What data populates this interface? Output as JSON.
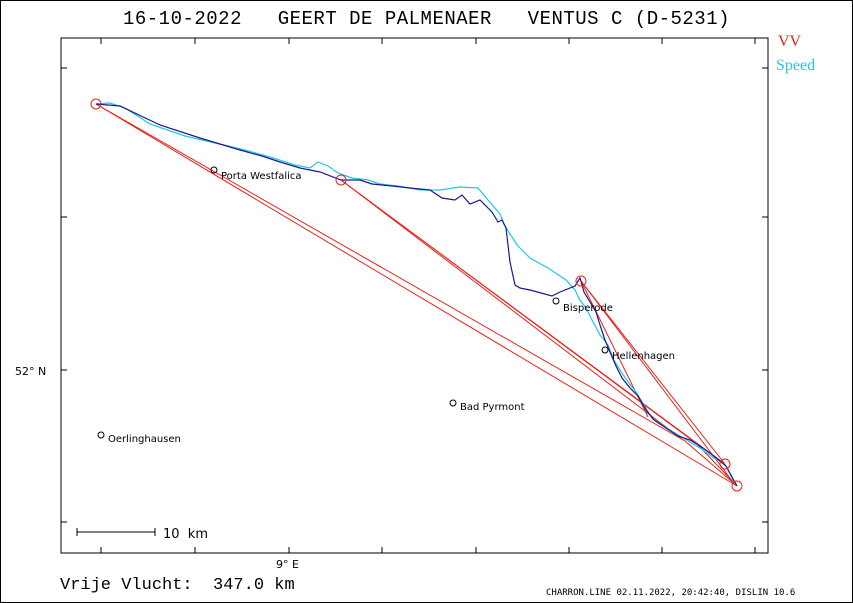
{
  "header": {
    "date": "16-10-2022",
    "pilot": "GEERT DE PALMENAER",
    "glider": "VENTUS C (D-5231)"
  },
  "legend": {
    "vv": {
      "label": "VV",
      "color": "#e8231a"
    },
    "speed": {
      "label": "Speed",
      "color": "#1ec8e6"
    }
  },
  "axes": {
    "lon_label": "9° E",
    "lat_label": "52° N"
  },
  "scalebar": {
    "label": "10  km"
  },
  "places": [
    {
      "name": "Porta Westfalica"
    },
    {
      "name": "Bisperode"
    },
    {
      "name": "Hellenhagen"
    },
    {
      "name": "Bad Pyrmont"
    },
    {
      "name": "Oerlinghausen"
    }
  ],
  "summary": {
    "label": "Vrije Vlucht:",
    "distance": "347.0 km"
  },
  "footer": {
    "text": "CHARRON.LINE 02.11.2022, 20:42:40, DISLIN 10.6"
  },
  "colors": {
    "track_dark": "#1a1a8c",
    "track_light": "#1ec8e6",
    "task_line": "#e8231a"
  }
}
